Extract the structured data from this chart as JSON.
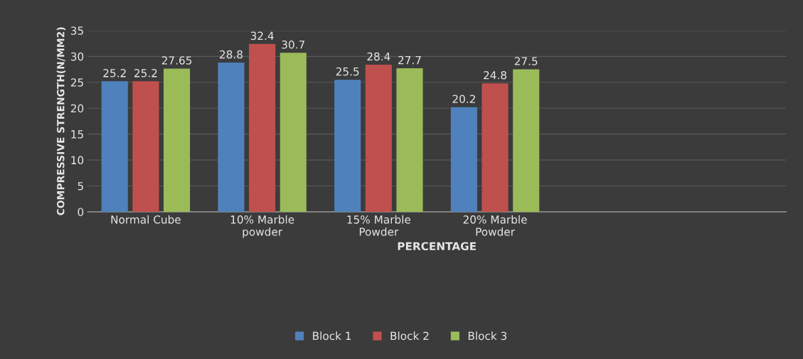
{
  "chart_data": {
    "type": "bar",
    "xlabel": "PERCENTAGE",
    "ylabel": "COMPRESSIVE STRENGTH(N/MM2)",
    "categories": [
      "Normal Cube",
      "10% Marble\npowder",
      "15% Marble\nPowder",
      "20% Marble\nPowder",
      null,
      null
    ],
    "series": [
      {
        "name": "Block 1",
        "color": "#4f81bd",
        "values": [
          25.2,
          28.8,
          25.5,
          20.2,
          null,
          null
        ]
      },
      {
        "name": "Block 2",
        "color": "#c0504d",
        "values": [
          25.2,
          32.4,
          28.4,
          24.8,
          null,
          null
        ]
      },
      {
        "name": "Block 3",
        "color": "#9bbb59",
        "values": [
          27.65,
          30.7,
          27.7,
          27.5,
          null,
          null
        ]
      }
    ],
    "ylim": [
      0,
      35
    ],
    "yticks": [
      0,
      5,
      10,
      15,
      20,
      25,
      30,
      35
    ],
    "grid": "y",
    "legend": "bottom",
    "data_labels": true
  }
}
